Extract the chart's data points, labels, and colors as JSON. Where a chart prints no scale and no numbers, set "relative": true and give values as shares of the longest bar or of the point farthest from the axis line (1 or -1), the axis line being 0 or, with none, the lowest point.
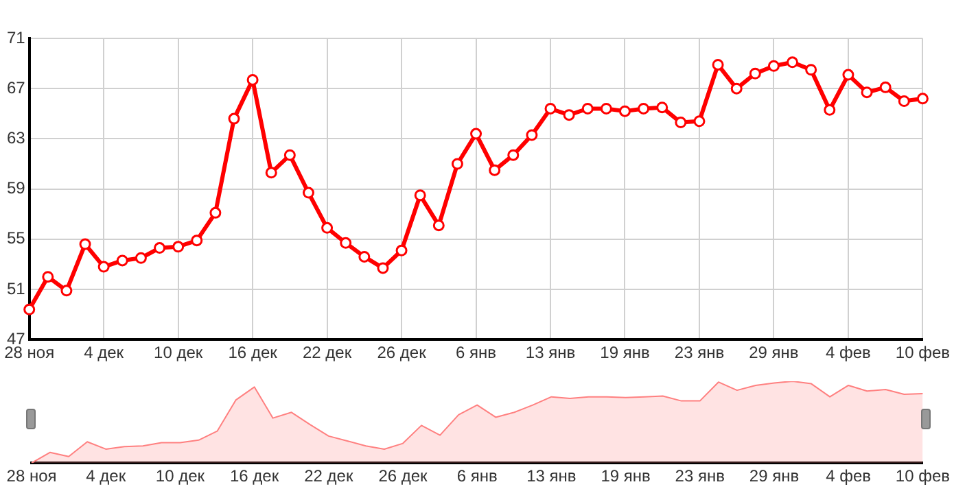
{
  "chart_data": [
    {
      "type": "line",
      "categories": [
        "28 ноя",
        null,
        null,
        null,
        "4 дек",
        null,
        null,
        null,
        "10 дек",
        null,
        null,
        null,
        "16 дек",
        null,
        null,
        null,
        "22 дек",
        null,
        null,
        null,
        "26 дек",
        null,
        null,
        null,
        "6 янв",
        null,
        null,
        null,
        "13 янв",
        null,
        null,
        null,
        "19 янв",
        null,
        null,
        null,
        "23 янв",
        null,
        null,
        null,
        "29 янв",
        null,
        null,
        null,
        "4 фев",
        null,
        null,
        null,
        "10 фев"
      ],
      "values": [
        49.4,
        52.0,
        50.9,
        54.6,
        52.8,
        53.3,
        53.5,
        54.3,
        54.4,
        54.9,
        57.1,
        64.6,
        67.7,
        60.3,
        61.7,
        58.7,
        55.9,
        54.7,
        53.6,
        52.7,
        54.1,
        58.5,
        56.1,
        61.0,
        63.4,
        60.5,
        61.7,
        63.3,
        65.4,
        64.9,
        65.4,
        65.4,
        65.2,
        65.4,
        65.5,
        64.3,
        64.4,
        68.9,
        67.0,
        68.2,
        68.8,
        69.1,
        68.5,
        65.3,
        68.1,
        66.7,
        67.1,
        66.0,
        66.2
      ],
      "color": "#ff0000",
      "marker": "circle",
      "ylim": [
        47,
        71
      ],
      "yticks": [
        47,
        51,
        55,
        59,
        63,
        67,
        71
      ],
      "grid": true
    },
    {
      "type": "area",
      "relative": true,
      "tick_labels": "x",
      "categories": [
        "28 ноя",
        null,
        null,
        null,
        "4 дек",
        null,
        null,
        null,
        "10 дек",
        null,
        null,
        null,
        "16 дек",
        null,
        null,
        null,
        "22 дек",
        null,
        null,
        null,
        "26 дек",
        null,
        null,
        null,
        "6 янв",
        null,
        null,
        null,
        "13 янв",
        null,
        null,
        null,
        "19 янв",
        null,
        null,
        null,
        "23 янв",
        null,
        null,
        null,
        "29 янв",
        null,
        null,
        null,
        "4 фев",
        null,
        null,
        null,
        "10 фев"
      ],
      "values": [
        0,
        0.13,
        0.08,
        0.26,
        0.17,
        0.2,
        0.21,
        0.25,
        0.25,
        0.28,
        0.39,
        0.77,
        0.93,
        0.55,
        0.62,
        0.47,
        0.33,
        0.27,
        0.21,
        0.17,
        0.24,
        0.46,
        0.34,
        0.59,
        0.71,
        0.56,
        0.62,
        0.71,
        0.81,
        0.79,
        0.81,
        0.81,
        0.8,
        0.81,
        0.82,
        0.76,
        0.76,
        0.99,
        0.89,
        0.95,
        0.98,
        1,
        0.97,
        0.81,
        0.95,
        0.88,
        0.9,
        0.84,
        0.85
      ],
      "color": "#ff8080"
    }
  ]
}
